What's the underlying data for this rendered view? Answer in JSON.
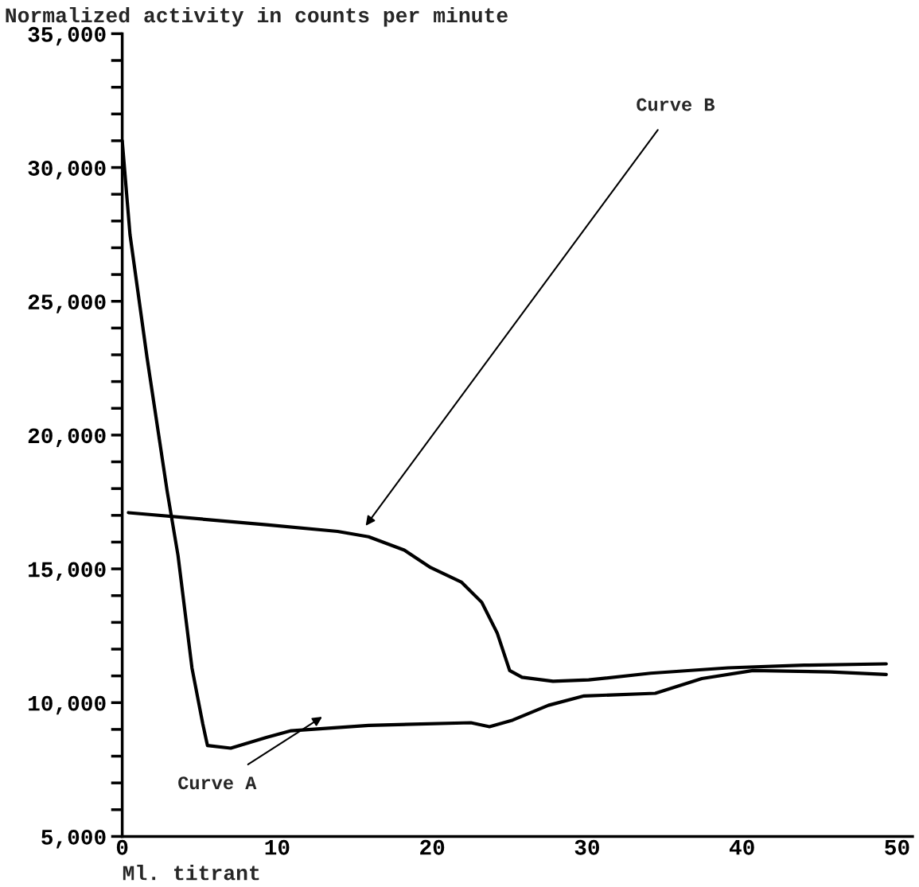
{
  "chart_data": {
    "type": "line",
    "ylabel": "Normalized activity in counts per minute",
    "xlabel": "Ml. titrant",
    "xlim": [
      0,
      51
    ],
    "xticks": [
      0,
      10,
      20,
      30,
      40,
      50
    ],
    "ylim": [
      5000,
      35000
    ],
    "yticks": [
      {
        "value": 5000,
        "label": "5,000"
      },
      {
        "value": 6000,
        "label": null
      },
      {
        "value": 7000,
        "label": null
      },
      {
        "value": 8000,
        "label": null
      },
      {
        "value": 9000,
        "label": null
      },
      {
        "value": 10000,
        "label": "10,000"
      },
      {
        "value": 11000,
        "label": null
      },
      {
        "value": 12000,
        "label": null
      },
      {
        "value": 13000,
        "label": null
      },
      {
        "value": 14000,
        "label": null
      },
      {
        "value": 15000,
        "label": "15,000"
      },
      {
        "value": 16000,
        "label": null
      },
      {
        "value": 17000,
        "label": null
      },
      {
        "value": 18000,
        "label": null
      },
      {
        "value": 19000,
        "label": null
      },
      {
        "value": 20000,
        "label": "20,000"
      },
      {
        "value": 21000,
        "label": null
      },
      {
        "value": 22000,
        "label": null
      },
      {
        "value": 23000,
        "label": null
      },
      {
        "value": 24000,
        "label": null
      },
      {
        "value": 25000,
        "label": "25,000"
      },
      {
        "value": 26000,
        "label": null
      },
      {
        "value": 27000,
        "label": null
      },
      {
        "value": 28000,
        "label": null
      },
      {
        "value": 29000,
        "label": null
      },
      {
        "value": 30000,
        "label": "30,000"
      },
      {
        "value": 31000,
        "label": null
      },
      {
        "value": 32000,
        "label": null
      },
      {
        "value": 33000,
        "label": null
      },
      {
        "value": 34000,
        "label": null
      },
      {
        "value": 35000,
        "label": "35,000"
      }
    ],
    "grid": false,
    "legend": false,
    "marker": "none",
    "line_style": "solid",
    "series": [
      {
        "color": "#000000",
        "x": [
          0,
          0.5,
          1.6,
          2.9,
          3.6,
          4.5,
          5.2,
          5.5,
          7.0,
          9.3,
          10.9,
          15.9,
          22.5,
          23.7,
          25.2,
          27.5,
          29.8,
          34.4,
          37.4,
          40.7,
          45.7,
          49.3
        ],
        "values": [
          31000,
          27500,
          22900,
          17900,
          15500,
          11300,
          9200,
          8400,
          8300,
          8700,
          8950,
          9150,
          9250,
          9100,
          9350,
          9900,
          10250,
          10350,
          10900,
          11200,
          11150,
          11050
        ]
      },
      {
        "color": "#000000",
        "x": [
          0.4,
          9.3,
          13.9,
          15.9,
          18.2,
          19.9,
          21.9,
          23.2,
          24.2,
          25.0,
          25.8,
          27.8,
          30.1,
          34.1,
          39.1,
          44.0,
          49.3
        ],
        "values": [
          17100,
          16650,
          16400,
          16200,
          15700,
          15050,
          14500,
          13750,
          12600,
          11200,
          10950,
          10800,
          10850,
          11100,
          11300,
          11400,
          11450
        ]
      }
    ],
    "annotations": [
      "Curve A",
      "Curve B"
    ]
  }
}
